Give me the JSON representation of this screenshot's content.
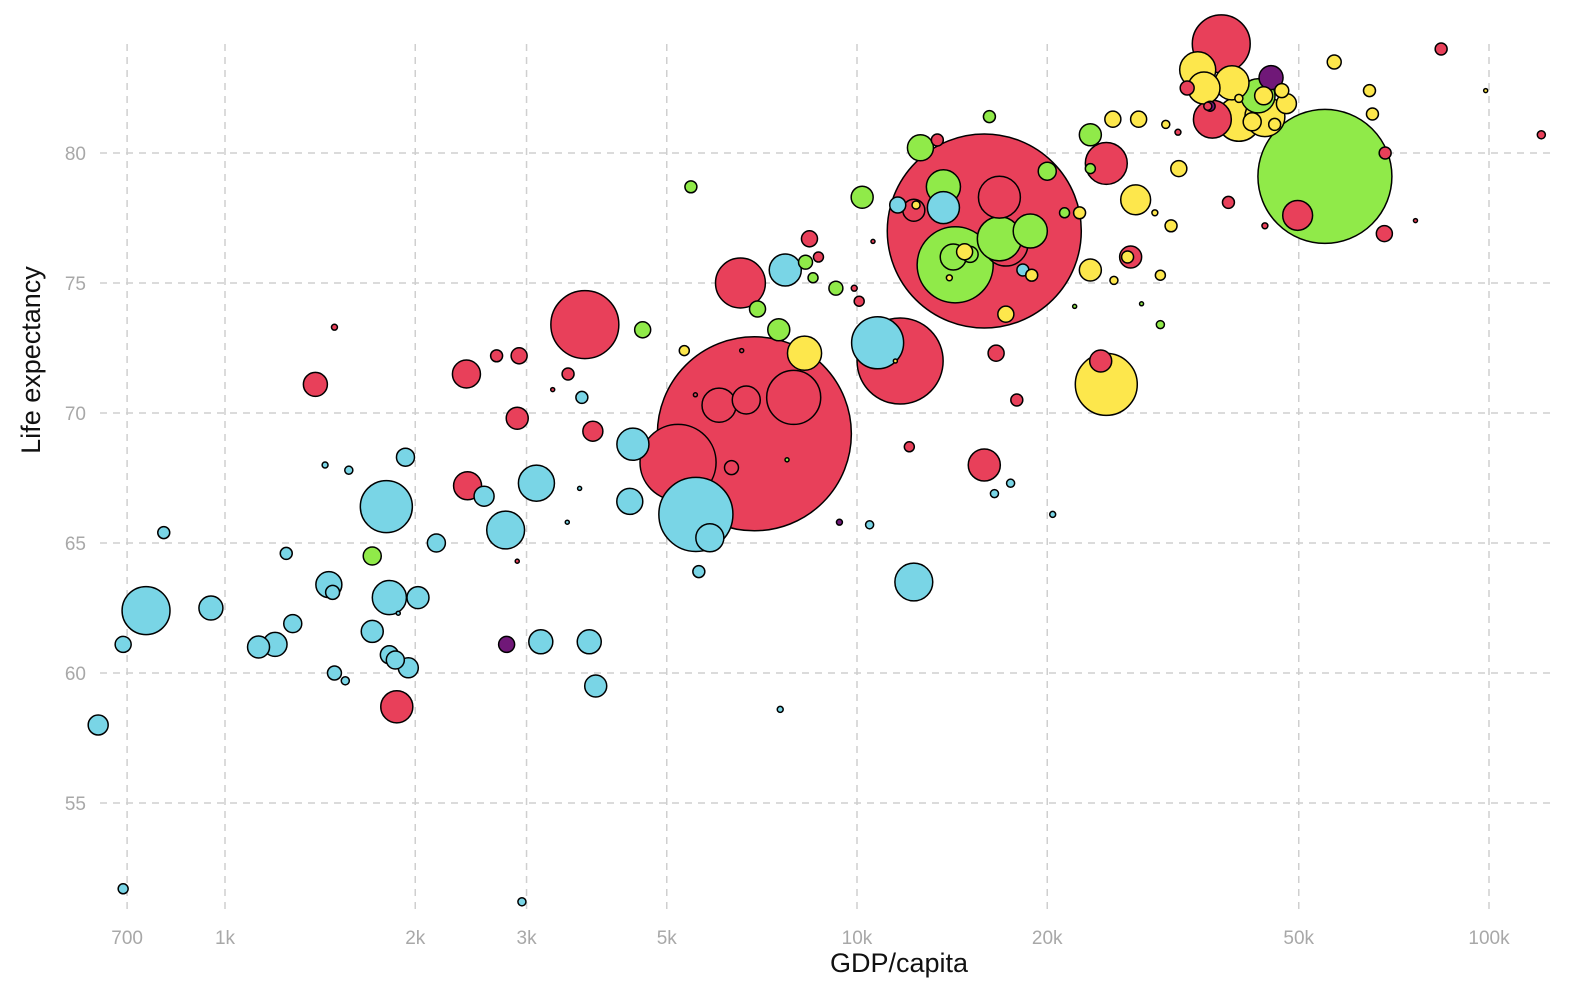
{
  "chart_data": {
    "type": "scatter",
    "subtype": "bubble",
    "title": "",
    "xlabel": "GDP/capita",
    "ylabel": "Life expectancy",
    "xscale": "log",
    "xlim": [
      627,
      123000
    ],
    "ylim": [
      50.9,
      85.1
    ],
    "grid": true,
    "grid_style": "dashed",
    "legend": "none",
    "x_ticks": [
      {
        "value": 700,
        "label": "700"
      },
      {
        "value": 1000,
        "label": "1k"
      },
      {
        "value": 2000,
        "label": "2k"
      },
      {
        "value": 3000,
        "label": "3k"
      },
      {
        "value": 5000,
        "label": "5k"
      },
      {
        "value": 10000,
        "label": "10k"
      },
      {
        "value": 20000,
        "label": "20k"
      },
      {
        "value": 50000,
        "label": "50k"
      },
      {
        "value": 100000,
        "label": "100k"
      }
    ],
    "y_ticks": [
      {
        "value": 55,
        "label": "55"
      },
      {
        "value": 60,
        "label": "60"
      },
      {
        "value": 65,
        "label": "65"
      },
      {
        "value": 70,
        "label": "70"
      },
      {
        "value": 75,
        "label": "75"
      },
      {
        "value": 80,
        "label": "80"
      }
    ],
    "size_encoding": "population (millions, estimated from bubble area)",
    "group_colors": {
      "red": "#E8405A",
      "cyan": "#79D5E6",
      "green": "#90EA49",
      "yellow": "#FDE74C",
      "purple": "#701878"
    },
    "point_fields": [
      "gdp_per_capita",
      "life_expectancy",
      "population_millions",
      "group"
    ],
    "points": [
      [
        630,
        58.0,
        14.8,
        "cyan"
      ],
      [
        690,
        61.1,
        9.5,
        "cyan"
      ],
      [
        750,
        62.4,
        85,
        "cyan"
      ],
      [
        800,
        65.4,
        5.3,
        "cyan"
      ],
      [
        950,
        62.5,
        21.3,
        "cyan"
      ],
      [
        690,
        51.7,
        3.7,
        "cyan"
      ],
      [
        1130,
        61.0,
        17.9,
        "cyan"
      ],
      [
        1200,
        61.1,
        21.3,
        "cyan"
      ],
      [
        1250,
        64.6,
        5.3,
        "cyan"
      ],
      [
        1280,
        61.9,
        12,
        "cyan"
      ],
      [
        1440,
        68.0,
        1.3,
        "cyan"
      ],
      [
        1460,
        63.4,
        25,
        "cyan"
      ],
      [
        1480,
        63.1,
        7.2,
        "cyan"
      ],
      [
        1490,
        60.0,
        7.2,
        "cyan"
      ],
      [
        1550,
        59.7,
        2.4,
        "cyan"
      ],
      [
        1570,
        67.8,
        2.4,
        "cyan"
      ],
      [
        1710,
        61.6,
        17.9,
        "cyan"
      ],
      [
        1800,
        66.4,
        100,
        "cyan"
      ],
      [
        1820,
        62.9,
        43,
        "cyan"
      ],
      [
        1820,
        60.7,
        12,
        "cyan"
      ],
      [
        1860,
        60.5,
        12,
        "cyan"
      ],
      [
        1930,
        68.3,
        12,
        "cyan"
      ],
      [
        1950,
        60.2,
        14.8,
        "cyan"
      ],
      [
        2020,
        62.9,
        17.9,
        "cyan"
      ],
      [
        2160,
        65.0,
        12,
        "cyan"
      ],
      [
        2570,
        66.8,
        14.8,
        "cyan"
      ],
      [
        2780,
        65.5,
        53,
        "cyan"
      ],
      [
        3110,
        67.3,
        48,
        "cyan"
      ],
      [
        3160,
        61.2,
        21.3,
        "cyan"
      ],
      [
        3670,
        70.6,
        5.3,
        "cyan"
      ],
      [
        3770,
        61.2,
        21.3,
        "cyan"
      ],
      [
        3860,
        59.5,
        17.9,
        "cyan"
      ],
      [
        4370,
        66.6,
        25,
        "cyan"
      ],
      [
        4420,
        68.8,
        38,
        "cyan"
      ],
      [
        5560,
        66.1,
        203,
        "cyan"
      ],
      [
        5850,
        65.2,
        29,
        "cyan"
      ],
      [
        5620,
        63.9,
        5.3,
        "cyan"
      ],
      [
        2950,
        51.2,
        2.4,
        "cyan"
      ],
      [
        7560,
        58.6,
        1.3,
        "cyan"
      ],
      [
        7700,
        75.5,
        38,
        "cyan"
      ],
      [
        10470,
        65.7,
        2.4,
        "cyan"
      ],
      [
        10780,
        72.7,
        100,
        "cyan"
      ],
      [
        12300,
        63.5,
        53,
        "cyan"
      ],
      [
        11600,
        78.0,
        9.5,
        "cyan"
      ],
      [
        13700,
        77.9,
        38,
        "cyan"
      ],
      [
        18300,
        75.5,
        5.3,
        "cyan"
      ],
      [
        16500,
        66.9,
        2.4,
        "cyan"
      ],
      [
        17500,
        67.3,
        2.4,
        "cyan"
      ],
      [
        20400,
        66.1,
        1.3,
        "cyan"
      ],
      [
        1490,
        73.3,
        1.3,
        "red"
      ],
      [
        1390,
        71.1,
        21.3,
        "red"
      ],
      [
        1870,
        58.7,
        38,
        "red"
      ],
      [
        2410,
        71.5,
        29,
        "red"
      ],
      [
        2420,
        67.2,
        29,
        "red"
      ],
      [
        2690,
        72.2,
        5.3,
        "red"
      ],
      [
        2920,
        72.2,
        9.5,
        "red"
      ],
      [
        2900,
        69.8,
        17.9,
        "red"
      ],
      [
        3490,
        71.5,
        5.3,
        "red"
      ],
      [
        3710,
        73.4,
        171,
        "red"
      ],
      [
        3820,
        69.3,
        14.8,
        "red"
      ],
      [
        6540,
        75.0,
        92,
        "red"
      ],
      [
        6880,
        69.2,
        1392,
        "red"
      ],
      [
        5210,
        68.1,
        214,
        "red"
      ],
      [
        6050,
        70.3,
        43,
        "red"
      ],
      [
        6680,
        70.5,
        29,
        "red"
      ],
      [
        7940,
        70.6,
        108,
        "red"
      ],
      [
        6330,
        67.9,
        7.2,
        "red"
      ],
      [
        8410,
        76.7,
        9.5,
        "red"
      ],
      [
        8690,
        76.0,
        3.7,
        "red"
      ],
      [
        10080,
        74.3,
        3.7,
        "red"
      ],
      [
        11700,
        72.0,
        274,
        "red"
      ],
      [
        12100,
        68.7,
        3.7,
        "red"
      ],
      [
        13400,
        80.5,
        5.3,
        "red"
      ],
      [
        12300,
        77.8,
        17.9,
        "red"
      ],
      [
        15900,
        77.0,
        1392,
        "red"
      ],
      [
        16800,
        78.3,
        65,
        "red"
      ],
      [
        17200,
        76.5,
        72,
        "red"
      ],
      [
        16600,
        72.3,
        9.5,
        "red"
      ],
      [
        17900,
        70.5,
        5.3,
        "red"
      ],
      [
        15900,
        68.0,
        38,
        "red"
      ],
      [
        24800,
        79.6,
        65,
        "red"
      ],
      [
        27100,
        76.0,
        17.9,
        "red"
      ],
      [
        24300,
        72.0,
        17.9,
        "red"
      ],
      [
        32200,
        80.8,
        1.3,
        "red"
      ],
      [
        33300,
        82.5,
        7.2,
        "red"
      ],
      [
        36500,
        81.3,
        53,
        "red"
      ],
      [
        37700,
        84.2,
        124,
        "red"
      ],
      [
        38700,
        78.1,
        5.3,
        "red"
      ],
      [
        44200,
        77.2,
        1.3,
        "red"
      ],
      [
        49800,
        77.6,
        33,
        "red"
      ],
      [
        68500,
        80.0,
        5.3,
        "red"
      ],
      [
        68300,
        76.9,
        9.5,
        "red"
      ],
      [
        76500,
        77.4,
        0.6,
        "red"
      ],
      [
        84000,
        84.0,
        5.3,
        "red"
      ],
      [
        121000,
        80.7,
        2.4,
        "red"
      ],
      [
        9900,
        74.8,
        1.3,
        "red"
      ],
      [
        35900,
        81.8,
        2.4,
        "red"
      ],
      [
        1710,
        64.5,
        12,
        "green"
      ],
      [
        5460,
        78.7,
        5.3,
        "green"
      ],
      [
        4580,
        73.2,
        9.5,
        "green"
      ],
      [
        6960,
        74.0,
        9.5,
        "green"
      ],
      [
        7520,
        73.2,
        17.9,
        "green"
      ],
      [
        8290,
        75.8,
        7.2,
        "green"
      ],
      [
        8520,
        75.2,
        3.7,
        "green"
      ],
      [
        9260,
        74.8,
        7.2,
        "green"
      ],
      [
        10190,
        78.3,
        17.9,
        "green"
      ],
      [
        12600,
        80.2,
        25,
        "green"
      ],
      [
        13700,
        78.7,
        43,
        "green"
      ],
      [
        14300,
        75.7,
        214,
        "green"
      ],
      [
        14200,
        76.0,
        25,
        "green"
      ],
      [
        15100,
        76.1,
        9.5,
        "green"
      ],
      [
        16800,
        76.7,
        72,
        "green"
      ],
      [
        18800,
        77.0,
        43,
        "green"
      ],
      [
        16200,
        81.4,
        5.3,
        "green"
      ],
      [
        20000,
        79.3,
        12,
        "green"
      ],
      [
        23400,
        80.7,
        17.9,
        "green"
      ],
      [
        23400,
        79.4,
        3.7,
        "green"
      ],
      [
        21300,
        77.7,
        3.7,
        "green"
      ],
      [
        55000,
        79.1,
        664,
        "green"
      ],
      [
        43100,
        82.2,
        43,
        "green"
      ],
      [
        30200,
        73.4,
        2.4,
        "green"
      ],
      [
        5330,
        72.4,
        3.7,
        "yellow"
      ],
      [
        8260,
        72.3,
        43,
        "yellow"
      ],
      [
        12400,
        78.0,
        2.4,
        "yellow"
      ],
      [
        14000,
        75.2,
        1.3,
        "yellow"
      ],
      [
        14800,
        76.2,
        9.5,
        "yellow"
      ],
      [
        17200,
        73.8,
        9.5,
        "yellow"
      ],
      [
        18900,
        75.3,
        5.3,
        "yellow"
      ],
      [
        22500,
        77.7,
        5.3,
        "yellow"
      ],
      [
        23400,
        75.5,
        17.9,
        "yellow"
      ],
      [
        24800,
        71.1,
        142,
        "yellow"
      ],
      [
        25500,
        75.1,
        2.4,
        "yellow"
      ],
      [
        26800,
        76.0,
        5.3,
        "yellow"
      ],
      [
        25400,
        81.3,
        9.5,
        "yellow"
      ],
      [
        27900,
        81.3,
        9.5,
        "yellow"
      ],
      [
        27600,
        78.2,
        33,
        "yellow"
      ],
      [
        29600,
        77.7,
        1.3,
        "yellow"
      ],
      [
        30200,
        75.3,
        3.7,
        "yellow"
      ],
      [
        31400,
        77.2,
        5.3,
        "yellow"
      ],
      [
        30800,
        81.1,
        2.4,
        "yellow"
      ],
      [
        32300,
        79.4,
        9.5,
        "yellow"
      ],
      [
        34600,
        83.2,
        48,
        "yellow"
      ],
      [
        35400,
        82.5,
        38,
        "yellow"
      ],
      [
        39200,
        82.7,
        43,
        "yellow"
      ],
      [
        40200,
        81.3,
        72,
        "yellow"
      ],
      [
        40200,
        82.1,
        2.4,
        "yellow"
      ],
      [
        42200,
        81.2,
        12,
        "yellow"
      ],
      [
        44200,
        81.4,
        59,
        "yellow"
      ],
      [
        44000,
        82.2,
        12,
        "yellow"
      ],
      [
        45800,
        81.1,
        5.3,
        "yellow"
      ],
      [
        47800,
        81.9,
        14.8,
        "yellow"
      ],
      [
        47000,
        82.4,
        7.2,
        "yellow"
      ],
      [
        56900,
        83.5,
        7.2,
        "yellow"
      ],
      [
        64700,
        82.4,
        5.3,
        "yellow"
      ],
      [
        65400,
        81.5,
        5.3,
        "yellow"
      ],
      [
        98800,
        82.4,
        0.6,
        "yellow"
      ],
      [
        2790,
        61.1,
        9.5,
        "purple"
      ],
      [
        45200,
        82.9,
        21.3,
        "purple"
      ],
      [
        36200,
        81.8,
        3.7,
        "purple"
      ],
      [
        9380,
        65.8,
        1.3,
        "purple"
      ],
      [
        3300,
        70.9,
        0.6,
        "red"
      ],
      [
        3640,
        67.1,
        0.6,
        "cyan"
      ],
      [
        3480,
        65.8,
        0.4,
        "cyan"
      ],
      [
        2900,
        64.3,
        0.6,
        "red"
      ],
      [
        1880,
        62.3,
        0.4,
        "cyan"
      ],
      [
        6570,
        72.4,
        0.6,
        "red"
      ],
      [
        7750,
        68.2,
        0.6,
        "green"
      ],
      [
        10600,
        76.6,
        0.6,
        "red"
      ],
      [
        5550,
        70.7,
        0.4,
        "red"
      ],
      [
        11500,
        72.0,
        0.6,
        "yellow"
      ],
      [
        22100,
        74.1,
        0.6,
        "green"
      ],
      [
        28200,
        74.2,
        0.4,
        "green"
      ]
    ]
  }
}
